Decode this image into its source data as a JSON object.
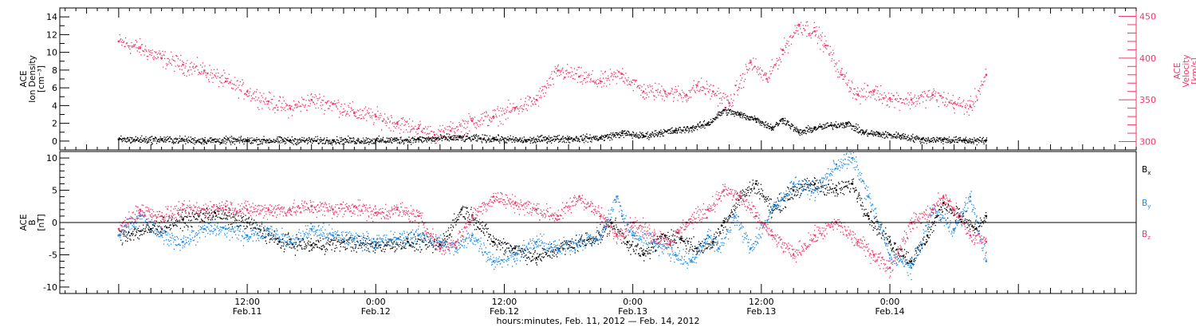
{
  "colors": {
    "axis": "#000000",
    "black_series": "#000000",
    "pink_series": "#f0386a",
    "blue_series": "#1e8ce8",
    "velocity_axis": "#f0386a"
  },
  "chart_data": [
    {
      "type": "scatter",
      "panel": "top",
      "ylabel_lines": [
        "ACE",
        "Ion Density",
        "[cm⁻³]"
      ],
      "y2label_lines": [
        "ACE",
        "Velocity",
        "[km/s]"
      ],
      "ylim": [
        -1,
        15
      ],
      "yticks": [
        0,
        2,
        4,
        6,
        8,
        10,
        12,
        14
      ],
      "ytick_labels": [
        "0",
        "2",
        "4",
        "6",
        "8",
        "10",
        "12",
        "14"
      ],
      "y2lim": [
        290,
        460
      ],
      "y2ticks": [
        300,
        350,
        400,
        450
      ],
      "y2tick_labels": [
        "300",
        "350",
        "400",
        "450"
      ],
      "series": [
        {
          "axis": "right",
          "color": "pink",
          "x": [
            0,
            2,
            4,
            6,
            8,
            10,
            12,
            14,
            16,
            18,
            20,
            22,
            24,
            26,
            28,
            29.5,
            31,
            33,
            35,
            37,
            39,
            41,
            43,
            45,
            47,
            49,
            51,
            53,
            54,
            55.5,
            57,
            59,
            60.5,
            62,
            63.5,
            65,
            66,
            67.5,
            69,
            70.5,
            72,
            74,
            76,
            78,
            79.5,
            81
          ],
          "y": [
            420,
            412,
            400,
            392,
            385,
            372,
            360,
            348,
            340,
            350,
            345,
            335,
            330,
            322,
            316,
            308,
            313,
            325,
            330,
            340,
            350,
            385,
            378,
            372,
            381,
            360,
            360,
            356,
            367,
            360,
            346,
            395,
            375,
            410,
            440,
            432,
            415,
            380,
            356,
            360,
            352,
            350,
            356,
            346,
            342,
            380
          ]
        },
        {
          "axis": "left",
          "color": "black",
          "x": [
            0,
            4,
            8,
            12,
            16,
            20,
            24,
            28,
            31,
            35,
            38,
            40,
            42,
            45,
            47,
            49,
            50.5,
            52,
            53.5,
            55,
            56.5,
            58,
            59.5,
            61,
            62,
            63.5,
            65,
            66.5,
            68,
            69.5,
            71,
            73,
            75,
            77,
            79,
            81
          ],
          "y": [
            0.2,
            0.2,
            0.1,
            0.1,
            0.1,
            0.1,
            0.1,
            0.2,
            0.4,
            0.3,
            0.1,
            0.3,
            0.3,
            0.4,
            0.9,
            0.6,
            1.0,
            1.2,
            1.5,
            2.0,
            3.5,
            3.0,
            2.5,
            1.5,
            2.5,
            1.0,
            1.5,
            1.8,
            2.0,
            1.0,
            0.8,
            0.6,
            0.2,
            0.2,
            0.1,
            0.1
          ]
        }
      ]
    },
    {
      "type": "scatter",
      "panel": "bottom",
      "ylabel_lines": [
        "ACE",
        "B",
        "[nT]"
      ],
      "ylim": [
        -11,
        11
      ],
      "yticks": [
        -10,
        -5,
        0,
        5,
        10
      ],
      "ytick_labels": [
        "-10",
        "-5",
        "0",
        "5",
        "10"
      ],
      "series": [
        {
          "name": "B",
          "sub": "x",
          "color": "black",
          "x": [
            0,
            3,
            6,
            9,
            12,
            15,
            18,
            21,
            24,
            27,
            30,
            32,
            33,
            35,
            37,
            39,
            41,
            43,
            45,
            46,
            47.5,
            49,
            51,
            52.5,
            54,
            55.5,
            56.5,
            58,
            59.5,
            61,
            63,
            65,
            67,
            68.5,
            70,
            72,
            74,
            75.5,
            77,
            78.5,
            80,
            81
          ],
          "y": [
            -2,
            -1,
            0.5,
            1.5,
            0,
            -3,
            -3.5,
            -3,
            -3.5,
            -3,
            -3.5,
            2,
            1,
            -3,
            -4,
            -5.5,
            -4,
            -3,
            -2,
            0,
            -3,
            -5,
            -2,
            -2.5,
            -4,
            -3,
            0,
            4,
            6,
            2,
            5,
            6,
            5,
            6,
            1,
            -3,
            -6,
            -2,
            3,
            1,
            -1,
            1
          ]
        },
        {
          "name": "B",
          "sub": "y",
          "color": "blue",
          "x": [
            0,
            2,
            4,
            6,
            8,
            10,
            12,
            14,
            16,
            18,
            20,
            22,
            24,
            26,
            28,
            30,
            31.5,
            33,
            35,
            37,
            39,
            41,
            43,
            45,
            46.5,
            47,
            48,
            50,
            52,
            53.5,
            55,
            56,
            57.5,
            59,
            61,
            63,
            65,
            67,
            68.5,
            70,
            72,
            74,
            76,
            78,
            79.5,
            81
          ],
          "y": [
            -2,
            1,
            -2,
            -3,
            -1,
            -1,
            -2,
            -1,
            -3,
            -1,
            -2,
            -2.5,
            -3,
            -2.5,
            -2,
            -3,
            -4,
            -2,
            -6,
            -5,
            -3,
            -4,
            -3,
            -2,
            4,
            1,
            -2,
            -3,
            -5,
            -6,
            -2,
            -4,
            1,
            -4,
            2,
            6,
            5,
            9,
            10,
            4,
            -5,
            -7,
            2,
            -1,
            4,
            -6
          ]
        },
        {
          "name": "B",
          "sub": "z",
          "color": "pink",
          "x": [
            0,
            2,
            4,
            6,
            8,
            10,
            12,
            14,
            16,
            18,
            20,
            22,
            24,
            26,
            28,
            30,
            31.5,
            33,
            35,
            37,
            39,
            41,
            43,
            45,
            46.5,
            48,
            50,
            51.5,
            53,
            55,
            56.5,
            58,
            59.5,
            61,
            63,
            65,
            67,
            69,
            70.5,
            72,
            74,
            76,
            77,
            78,
            79.5,
            81
          ],
          "y": [
            -1,
            2,
            1,
            2,
            2,
            2.5,
            2,
            2,
            2,
            2.5,
            2,
            2.5,
            1.5,
            2,
            1,
            -4,
            -3,
            1,
            4,
            3,
            2,
            1,
            4,
            1,
            -2,
            0,
            -2,
            -3,
            0,
            2,
            5,
            4,
            1,
            -2,
            -5,
            -2,
            0,
            -3,
            -5,
            -7,
            0,
            2,
            4,
            2,
            -2,
            -3
          ]
        }
      ]
    }
  ],
  "legend": [
    {
      "base": "B",
      "sub": "x",
      "color": "black"
    },
    {
      "base": "B",
      "sub": "y",
      "color": "blue"
    },
    {
      "base": "B",
      "sub": "z",
      "color": "pink"
    }
  ],
  "x_axis": {
    "range_hours": [
      -5.5,
      95
    ],
    "major_ticks": [
      {
        "hour": 12,
        "time": "12:00",
        "day": "Feb.11"
      },
      {
        "hour": 24,
        "time": "0:00",
        "day": "Feb.12"
      },
      {
        "hour": 36,
        "time": "12:00",
        "day": "Feb.12"
      },
      {
        "hour": 48,
        "time": "0:00",
        "day": "Feb.13"
      },
      {
        "hour": 60,
        "time": "12:00",
        "day": "Feb.13"
      },
      {
        "hour": 72,
        "time": "0:00",
        "day": "Feb.14"
      }
    ],
    "title": "hours:minutes, Feb. 11, 2012 — Feb. 14, 2012"
  }
}
